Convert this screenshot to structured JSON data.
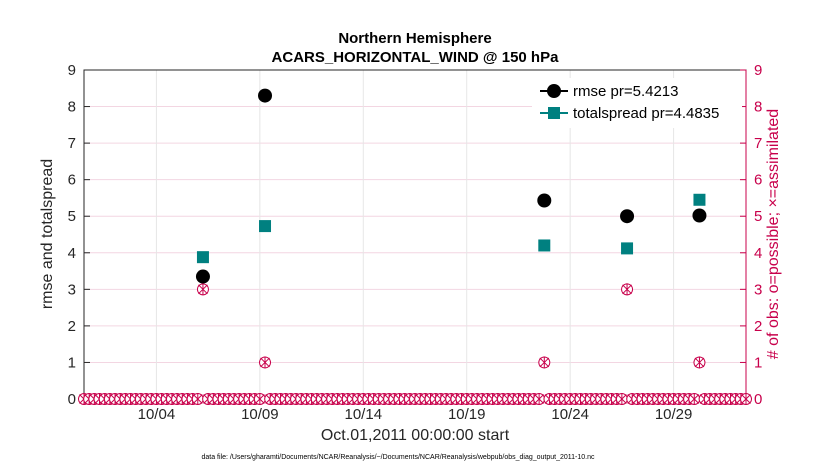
{
  "colors": {
    "rmse": "#000000",
    "totalspread": "#008080",
    "obs": "#c8004b",
    "grid": "#e6e6e6",
    "gridPink": "#f3d6e2"
  },
  "chart_data": {
    "type": "scatter",
    "title": "Northern Hemisphere",
    "subtitle": "ACARS_HORIZONTAL_WIND @ 150 hPa",
    "xlabel": "Oct.01,2011 00:00:00 start",
    "ylabel": "rmse and totalspread",
    "ylabel_right": "# of obs: o=possible; ×=assimilated",
    "xlim": [
      0,
      32
    ],
    "ylim": [
      0,
      9
    ],
    "ylim_right": [
      0,
      9
    ],
    "x_ticks": [
      3.5,
      8.5,
      13.5,
      18.5,
      23.5,
      28.5
    ],
    "x_tick_labels": [
      "10/04",
      "10/09",
      "10/14",
      "10/19",
      "10/24",
      "10/29"
    ],
    "y_ticks": [
      0,
      1,
      2,
      3,
      4,
      5,
      6,
      7,
      8,
      9
    ],
    "y_tick_labels": [
      "0",
      "1",
      "2",
      "3",
      "4",
      "5",
      "6",
      "7",
      "8",
      "9"
    ],
    "series": [
      {
        "name": "rmse",
        "legend": "rmse pr=5.4213",
        "marker": "circle",
        "x": [
          5.75,
          8.75,
          22.25,
          26.25,
          29.75
        ],
        "y": [
          3.35,
          8.3,
          5.43,
          5.0,
          5.02
        ]
      },
      {
        "name": "totalspread",
        "legend": "totalspread pr=4.4835",
        "marker": "square",
        "x": [
          5.75,
          8.75,
          22.25,
          26.25,
          29.75
        ],
        "y": [
          3.88,
          4.73,
          4.2,
          4.12,
          5.45
        ]
      }
    ],
    "obs_counts": {
      "x": [
        5.75,
        8.75,
        22.25,
        26.25,
        29.75
      ],
      "possible": [
        3,
        1,
        1,
        3,
        1
      ],
      "assimilated": [
        3,
        1,
        1,
        3,
        1
      ]
    },
    "zero_obs_spacing": 0.25
  },
  "footnote": "data file: /Users/gharamti/Documents/NCAR/Reanalysis/~/Documents/NCAR/Reanalysis/webpub/obs_diag_output_2011-10.nc"
}
